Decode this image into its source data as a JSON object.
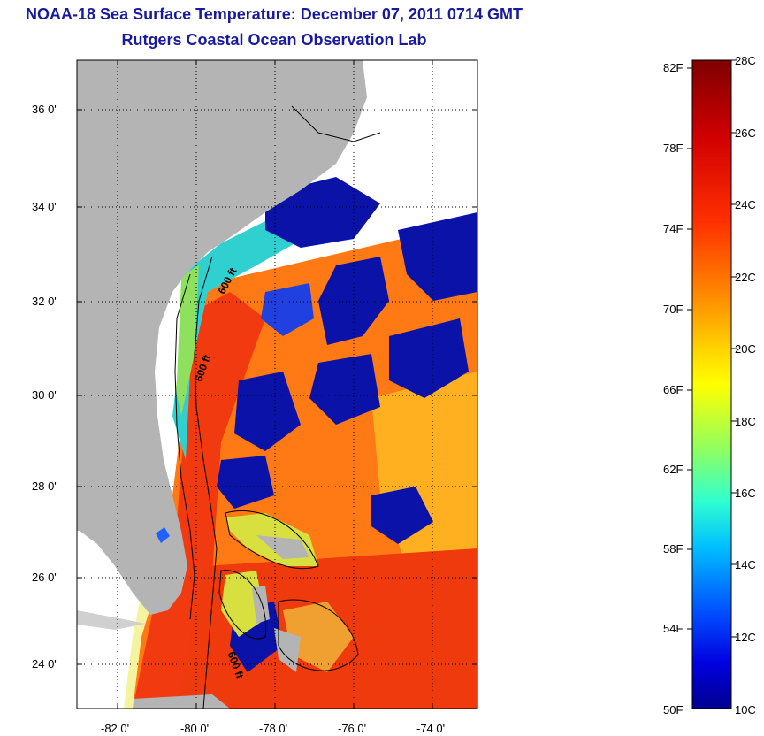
{
  "title_line1": "NOAA-18 Sea Surface Temperature:  December 07, 2011 0714 GMT",
  "title_line2": "Rutgers Coastal Ocean Observation Lab",
  "y_ticks": [
    "36 0'",
    "34 0'",
    "32 0'",
    "30 0'",
    "28 0'",
    "26 0'",
    "24 0'"
  ],
  "x_ticks": [
    "-82 0'",
    "-80 0'",
    "-78 0'",
    "-76 0'",
    "-74 0'"
  ],
  "contour_labels": [
    "600 ft",
    "600 ft",
    "600 ft"
  ],
  "colorbar": {
    "fahrenheit": [
      "82F",
      "78F",
      "74F",
      "70F",
      "66F",
      "62F",
      "58F",
      "54F",
      "50F"
    ],
    "celsius": [
      "28C",
      "26C",
      "24C",
      "22C",
      "20C",
      "18C",
      "16C",
      "14C",
      "12C",
      "10C"
    ],
    "stops": [
      "#7f0000",
      "#ff0000",
      "#ff8000",
      "#ffff00",
      "#80ff80",
      "#00ffff",
      "#0080ff",
      "#0000ff",
      "#00008f"
    ]
  },
  "colors": {
    "land": "#b4b4b4",
    "cloud": "#ffffff",
    "warm_ocean": "#ff7a14",
    "cold_patch": "#0a12a8",
    "title": "#1a1a9e"
  }
}
